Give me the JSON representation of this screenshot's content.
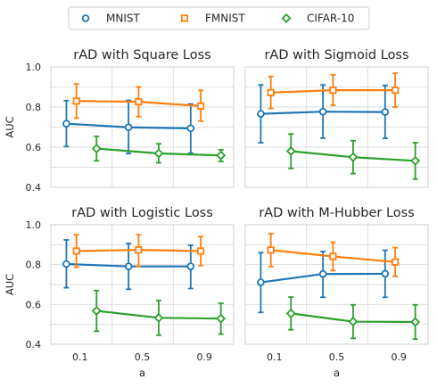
{
  "chart_data": {
    "type": "line",
    "legend": {
      "placement": "top-center",
      "entries": [
        "MNIST",
        "FMNIST",
        "CIFAR-10"
      ]
    },
    "colors": {
      "MNIST": "#1f77b4",
      "FMNIST": "#ff7f0e",
      "CIFAR-10": "#2ca02c"
    },
    "markers": {
      "MNIST": "circle",
      "FMNIST": "square",
      "CIFAR-10": "diamond"
    },
    "x_categories": [
      "0.1",
      "0.5",
      "0.9"
    ],
    "xlabel": "a",
    "ylabel": "AUC",
    "ylim": [
      0.4,
      1.0
    ],
    "yticks": [
      "0.4",
      "0.6",
      "0.8",
      "1.0"
    ],
    "grid": true,
    "subplots": [
      {
        "title": "rAD with Square Loss",
        "series": [
          {
            "name": "MNIST",
            "values": [
              0.717,
              0.699,
              0.694
            ],
            "err_low": [
              0.603,
              0.568,
              0.57
            ],
            "err_high": [
              0.832,
              0.833,
              0.815
            ]
          },
          {
            "name": "FMNIST",
            "values": [
              0.83,
              0.826,
              0.805
            ],
            "err_low": [
              0.745,
              0.752,
              0.73
            ],
            "err_high": [
              0.915,
              0.9,
              0.883
            ]
          },
          {
            "name": "CIFAR-10",
            "values": [
              0.593,
              0.569,
              0.559
            ],
            "err_low": [
              0.532,
              0.522,
              0.529
            ],
            "err_high": [
              0.654,
              0.617,
              0.587
            ]
          }
        ]
      },
      {
        "title": "rAD with Sigmoid Loss",
        "series": [
          {
            "name": "MNIST",
            "values": [
              0.766,
              0.777,
              0.775
            ],
            "err_low": [
              0.622,
              0.645,
              0.644
            ],
            "err_high": [
              0.91,
              0.91,
              0.908
            ]
          },
          {
            "name": "FMNIST",
            "values": [
              0.872,
              0.884,
              0.884
            ],
            "err_low": [
              0.793,
              0.808,
              0.8
            ],
            "err_high": [
              0.952,
              0.961,
              0.968
            ]
          },
          {
            "name": "CIFAR-10",
            "values": [
              0.58,
              0.55,
              0.532
            ],
            "err_low": [
              0.494,
              0.468,
              0.441
            ],
            "err_high": [
              0.666,
              0.632,
              0.622
            ]
          }
        ]
      },
      {
        "title": "rAD with Logistic Loss",
        "series": [
          {
            "name": "MNIST",
            "values": [
              0.803,
              0.791,
              0.791
            ],
            "err_low": [
              0.684,
              0.676,
              0.68
            ],
            "err_high": [
              0.924,
              0.906,
              0.897
            ]
          },
          {
            "name": "FMNIST",
            "values": [
              0.868,
              0.874,
              0.868
            ],
            "err_low": [
              0.787,
              0.792,
              0.795
            ],
            "err_high": [
              0.95,
              0.95,
              0.941
            ]
          },
          {
            "name": "CIFAR-10",
            "values": [
              0.568,
              0.533,
              0.529
            ],
            "err_low": [
              0.466,
              0.446,
              0.451
            ],
            "err_high": [
              0.67,
              0.62,
              0.606
            ]
          }
        ]
      },
      {
        "title": "rAD with M-Hubber Loss",
        "series": [
          {
            "name": "MNIST",
            "values": [
              0.711,
              0.753,
              0.754
            ],
            "err_low": [
              0.56,
              0.636,
              0.636
            ],
            "err_high": [
              0.86,
              0.866,
              0.872
            ]
          },
          {
            "name": "FMNIST",
            "values": [
              0.873,
              0.841,
              0.813
            ],
            "err_low": [
              0.79,
              0.77,
              0.741
            ],
            "err_high": [
              0.955,
              0.912,
              0.885
            ]
          },
          {
            "name": "CIFAR-10",
            "values": [
              0.555,
              0.514,
              0.512
            ],
            "err_low": [
              0.473,
              0.43,
              0.426
            ],
            "err_high": [
              0.637,
              0.598,
              0.598
            ]
          }
        ]
      }
    ]
  }
}
